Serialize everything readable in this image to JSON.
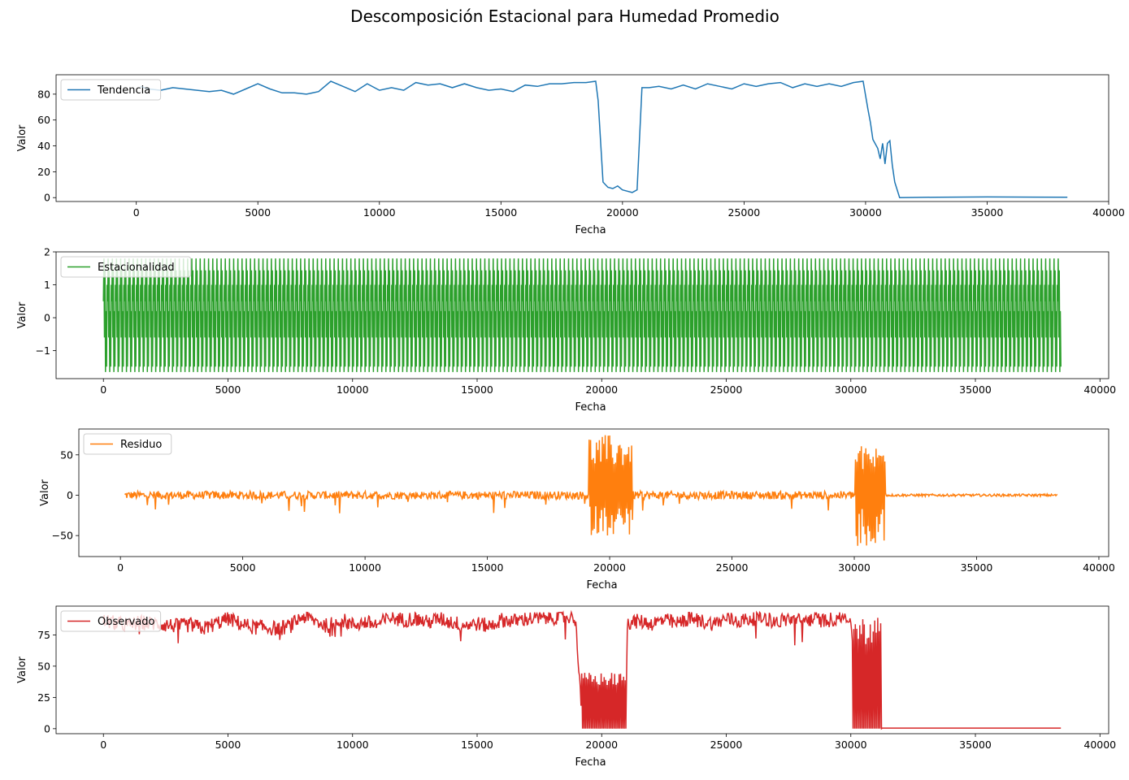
{
  "figure_title": "Descomposición Estacional para Humedad Promedio",
  "chart_data": [
    {
      "type": "line",
      "legend": "Tendencia",
      "legend_position": "upper-left",
      "color": "#1f77b4",
      "xlabel": "Fecha",
      "ylabel": "Valor",
      "xlim": [
        -3300,
        40000
      ],
      "ylim": [
        -3,
        95
      ],
      "xticks": [
        "0",
        "5000",
        "10000",
        "15000",
        "20000",
        "25000",
        "30000",
        "35000",
        "40000"
      ],
      "xtick_values": [
        0,
        5000,
        10000,
        15000,
        20000,
        25000,
        30000,
        35000,
        40000
      ],
      "yticks": [
        "0",
        "20",
        "40",
        "60",
        "80"
      ],
      "ytick_values": [
        0,
        20,
        40,
        60,
        80
      ],
      "x": [
        170,
        500,
        1000,
        1500,
        2000,
        2500,
        3000,
        3500,
        4000,
        4500,
        5000,
        5500,
        6000,
        6500,
        7000,
        7500,
        8000,
        8500,
        9000,
        9500,
        10000,
        10500,
        11000,
        11500,
        12000,
        12500,
        13000,
        13500,
        14000,
        14500,
        15000,
        15500,
        16000,
        16500,
        17000,
        17500,
        18000,
        18500,
        18900,
        19000,
        19200,
        19400,
        19600,
        19800,
        20000,
        20200,
        20400,
        20600,
        20800,
        21100,
        21500,
        22000,
        22500,
        23000,
        23500,
        24000,
        24500,
        25000,
        25500,
        26000,
        26500,
        27000,
        27500,
        28000,
        28500,
        29000,
        29500,
        29900,
        30100,
        30200,
        30300,
        30500,
        30600,
        30700,
        30800,
        30900,
        31000,
        31100,
        31200,
        31400,
        33000,
        35000,
        38300
      ],
      "y": [
        86,
        84,
        83,
        85,
        84,
        83,
        82,
        83,
        80,
        84,
        88,
        84,
        81,
        81,
        80,
        82,
        90,
        86,
        82,
        88,
        83,
        85,
        83,
        89,
        87,
        88,
        85,
        88,
        85,
        83,
        84,
        82,
        87,
        86,
        88,
        88,
        89,
        89,
        90,
        75,
        12,
        8,
        7,
        9,
        6,
        5,
        4,
        6,
        85,
        85,
        86,
        84,
        87,
        84,
        88,
        86,
        84,
        88,
        86,
        88,
        89,
        85,
        88,
        86,
        88,
        86,
        89,
        90,
        68,
        58,
        45,
        38,
        30,
        42,
        26,
        42,
        44,
        25,
        12,
        0,
        0.3,
        0.5,
        0.3
      ],
      "series": [
        {
          "values": "y"
        }
      ]
    },
    {
      "type": "line",
      "legend": "Estacionalidad",
      "legend_position": "upper-left",
      "color": "#2ca02c",
      "xlabel": "Fecha",
      "ylabel": "Valor",
      "xlim": [
        -1900,
        40350
      ],
      "ylim": [
        -1.85,
        2.0
      ],
      "xticks": [
        "0",
        "5000",
        "10000",
        "15000",
        "20000",
        "25000",
        "30000",
        "35000",
        "40000"
      ],
      "xtick_values": [
        0,
        5000,
        10000,
        15000,
        20000,
        25000,
        30000,
        35000,
        40000
      ],
      "yticks": [
        "−1",
        "0",
        "1",
        "2"
      ],
      "ytick_values": [
        -1,
        0,
        1,
        2
      ],
      "x_start": 0,
      "x_end": 38450,
      "period": 168,
      "max": 1.8,
      "min": -1.65,
      "series": [
        {
          "values": "periodic"
        }
      ]
    },
    {
      "type": "line",
      "legend": "Residuo",
      "legend_position": "upper-left",
      "color": "#ff7f0e",
      "xlabel": "Fecha",
      "ylabel": "Valor",
      "xlim": [
        -1700,
        40400
      ],
      "ylim": [
        -76,
        82
      ],
      "xticks": [
        "0",
        "5000",
        "10000",
        "15000",
        "20000",
        "25000",
        "30000",
        "35000",
        "40000"
      ],
      "xtick_values": [
        0,
        5000,
        10000,
        15000,
        20000,
        25000,
        30000,
        35000,
        40000
      ],
      "yticks": [
        "−50",
        "0",
        "50"
      ],
      "ytick_values": [
        -50,
        0,
        50
      ],
      "x_start": 170,
      "x_end": 38300,
      "bursts": [
        {
          "x0": 19150,
          "x1": 20950,
          "hi": 75,
          "lo": -50
        },
        {
          "x0": 30050,
          "x1": 31250,
          "hi": 62,
          "lo": -68
        }
      ],
      "series": [
        {
          "values": "residual"
        }
      ]
    },
    {
      "type": "line",
      "legend": "Observado",
      "legend_position": "upper-left",
      "color": "#d62728",
      "xlabel": "Fecha",
      "ylabel": "Valor",
      "xlim": [
        -1900,
        40350
      ],
      "ylim": [
        -4,
        98
      ],
      "xticks": [
        "0",
        "5000",
        "10000",
        "15000",
        "20000",
        "25000",
        "30000",
        "35000",
        "40000"
      ],
      "xtick_values": [
        0,
        5000,
        10000,
        15000,
        20000,
        25000,
        30000,
        35000,
        40000
      ],
      "yticks": [
        "0",
        "25",
        "50",
        "75"
      ],
      "ytick_values": [
        0,
        25,
        50,
        75
      ],
      "x_start": 0,
      "x_end": 38450,
      "gaps": [
        {
          "x0": 19200,
          "x1": 21000,
          "hi": 45,
          "lo": 0
        },
        {
          "x0": 30050,
          "x1": 31250,
          "hi": 90,
          "lo": 0
        }
      ],
      "flat_after": 31250,
      "flat_value": 0.5,
      "series": [
        {
          "values": "observed"
        }
      ]
    }
  ]
}
